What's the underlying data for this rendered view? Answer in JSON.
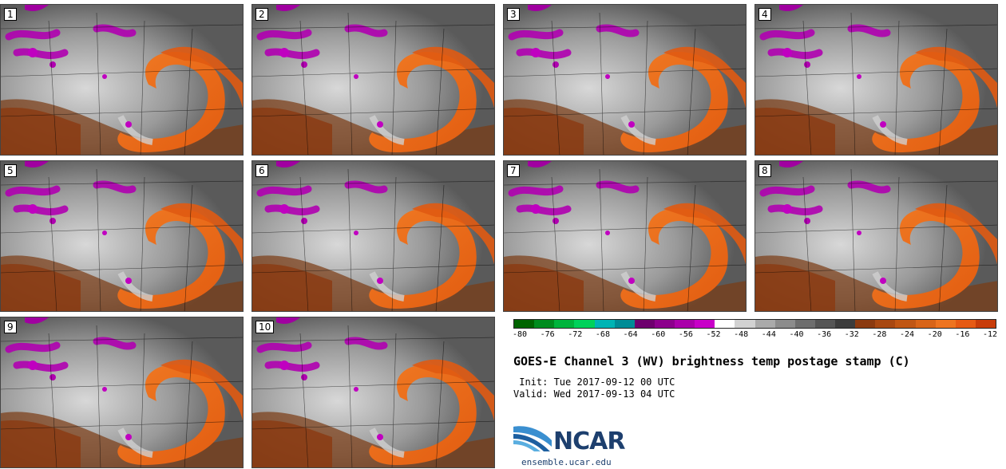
{
  "panels": [
    {
      "label": "1"
    },
    {
      "label": "2"
    },
    {
      "label": "3"
    },
    {
      "label": "4"
    },
    {
      "label": "5"
    },
    {
      "label": "6"
    },
    {
      "label": "7"
    },
    {
      "label": "8"
    },
    {
      "label": "9"
    },
    {
      "label": "10"
    }
  ],
  "colorbar": {
    "ticks": [
      "-80",
      "-76",
      "-72",
      "-68",
      "-64",
      "-60",
      "-56",
      "-52",
      "-48",
      "-44",
      "-40",
      "-36",
      "-32",
      "-28",
      "-24",
      "-20",
      "-16",
      "-12"
    ],
    "colors": [
      "#006400",
      "#008c1e",
      "#00b43c",
      "#00d25a",
      "#00b4b4",
      "#008c96",
      "#6e006e",
      "#8c008c",
      "#aa00aa",
      "#c800c8",
      "#ffffff",
      "#d2d2d2",
      "#aaaaaa",
      "#8c8c8c",
      "#6e6e6e",
      "#555555",
      "#3c3c3c",
      "#8b3a10",
      "#a84812",
      "#c05614",
      "#d86418",
      "#ee7420",
      "#e65a14",
      "#c83c0a"
    ]
  },
  "title": "GOES-E Channel 3 (WV) brightness temp postage stamp (C)",
  "init": " Init: Tue 2017-09-12 00 UTC",
  "valid": "Valid: Wed 2017-09-13 04 UTC",
  "logo_text": "NCAR",
  "url": "ensemble.ucar.edu"
}
